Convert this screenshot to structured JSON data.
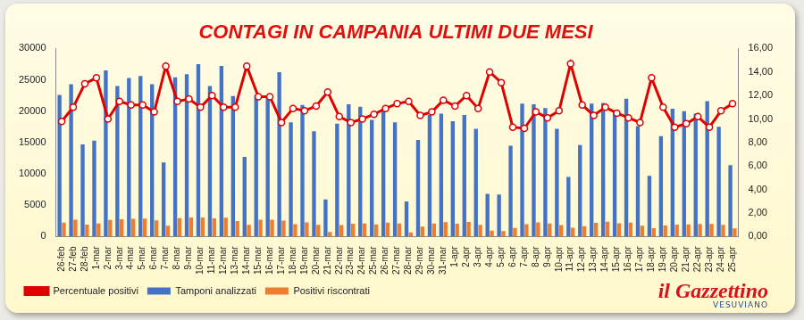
{
  "chart_data": {
    "type": "bar",
    "title": "CONTAGI IN CAMPANIA ULTIMI DUE MESI",
    "categories": [
      "26-feb",
      "27-feb",
      "28-feb",
      "1-mar",
      "2-mar",
      "3-mar",
      "4-mar",
      "5-mar",
      "6-mar",
      "7-mar",
      "8-mar",
      "9-mar",
      "10-mar",
      "11-mar",
      "12-mar",
      "13-mar",
      "14-mar",
      "15-mar",
      "16-mar",
      "17-mar",
      "18-mar",
      "19-mar",
      "20-mar",
      "21-mar",
      "22-mar",
      "23-mar",
      "24-mar",
      "25-mar",
      "26-mar",
      "27-mar",
      "28-mar",
      "29-mar",
      "30-mar",
      "31-mar",
      "1-apr",
      "2-apr",
      "3-apr",
      "4-apr",
      "5-apr",
      "6-apr",
      "7-apr",
      "8-apr",
      "9-apr",
      "10-apr",
      "11-apr",
      "12-apr",
      "13-apr",
      "14-apr",
      "15-apr",
      "16-apr",
      "17-apr",
      "18-apr",
      "19-apr",
      "20-apr",
      "21-apr",
      "22-apr",
      "23-apr",
      "24-apr",
      "25-apr"
    ],
    "series": [
      {
        "name": "Tamponi analizzati",
        "color": "#4472c4",
        "type": "bar",
        "values": [
          22600,
          24300,
          14700,
          15300,
          26500,
          24000,
          25300,
          25600,
          24300,
          11800,
          25400,
          25900,
          27500,
          24000,
          27200,
          22400,
          12700,
          22600,
          22500,
          26200,
          18200,
          21000,
          16800,
          5900,
          18000,
          21100,
          20700,
          18600,
          20300,
          18200,
          5600,
          15400,
          19400,
          19600,
          18400,
          19400,
          17200,
          6800,
          6700,
          14500,
          21200,
          21100,
          20500,
          17200,
          9500,
          14600,
          21200,
          21300,
          20100,
          22000,
          17600,
          9700,
          16000,
          20400,
          20000,
          19600,
          21600,
          17500,
          11400
        ]
      },
      {
        "name": "Positivi riscontrati",
        "color": "#ed7d31",
        "type": "bar",
        "values": [
          2215,
          2673,
          1911,
          2066,
          2650,
          2760,
          2834,
          2867,
          2576,
          1711,
          2921,
          3030,
          3025,
          2880,
          2992,
          2464,
          1842,
          2689,
          2678,
          2541,
          1984,
          2247,
          1865,
          726,
          1836,
          2047,
          2070,
          1934,
          2213,
          2057,
          644,
          1586,
          2056,
          2274,
          2042,
          2328,
          1875,
          952,
          878,
          1349,
          1950,
          2237,
          2071,
          1840,
          1397,
          1635,
          2184,
          2343,
          2111,
          2222,
          1707,
          1310,
          1760,
          1897,
          1920,
          1999,
          2009,
          1873,
          1288
        ]
      },
      {
        "name": "Percentuale positivi",
        "color": "#e00000",
        "type": "line",
        "axis": "y2",
        "marker": "circle",
        "values": [
          9.8,
          11.0,
          13.0,
          13.5,
          10.0,
          11.5,
          11.2,
          11.2,
          10.6,
          14.5,
          11.5,
          11.7,
          11.0,
          12.0,
          11.0,
          11.0,
          14.5,
          11.9,
          11.9,
          9.7,
          10.9,
          10.7,
          11.1,
          12.3,
          10.2,
          9.7,
          10.0,
          10.4,
          10.9,
          11.3,
          11.5,
          10.3,
          10.6,
          11.6,
          11.1,
          12.0,
          10.9,
          14.0,
          13.1,
          9.3,
          9.2,
          10.6,
          10.1,
          10.7,
          14.7,
          11.2,
          10.3,
          11.0,
          10.5,
          10.1,
          9.7,
          13.5,
          11.0,
          9.3,
          9.6,
          10.2,
          9.3,
          10.7,
          11.3
        ]
      }
    ],
    "ylim": [
      0,
      30000
    ],
    "yticks": [
      0,
      5000,
      10000,
      15000,
      20000,
      25000,
      30000
    ],
    "y2lim": [
      0,
      16
    ],
    "y2ticks": [
      {
        "value": 0,
        "label": "0,00"
      },
      {
        "value": 2,
        "label": "2,00"
      },
      {
        "value": 4,
        "label": "4,00"
      },
      {
        "value": 6,
        "label": "6,00"
      },
      {
        "value": 8,
        "label": "8,00"
      },
      {
        "value": 10,
        "label": "10,00"
      },
      {
        "value": 12,
        "label": "12,00"
      },
      {
        "value": 14,
        "label": "14,00"
      },
      {
        "value": 16,
        "label": "16,00"
      }
    ],
    "grid": false,
    "legend": "bottom-left",
    "logo": "il Gazzettino",
    "logo_subtitle": "VESUVIANO"
  }
}
